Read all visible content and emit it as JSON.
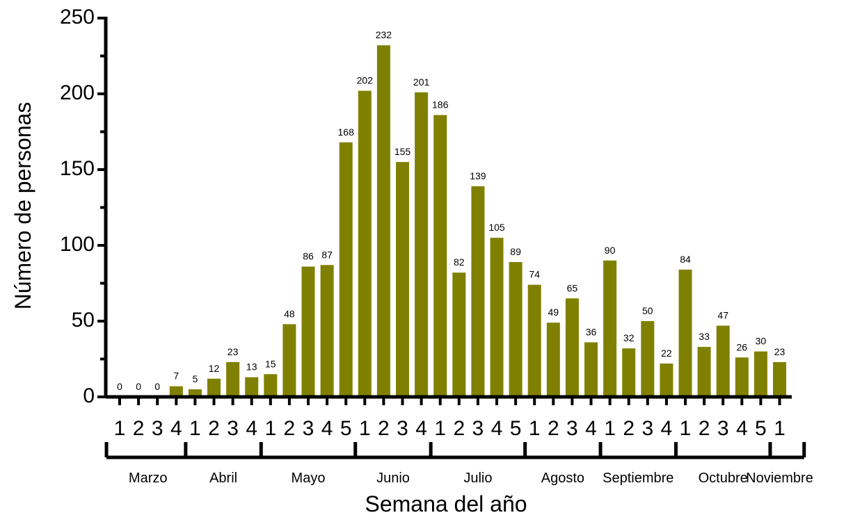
{
  "chart_data": {
    "type": "bar",
    "xlabel": "Semana del año",
    "ylabel": "Número de personas",
    "ylim": [
      0,
      250
    ],
    "yticks": [
      0,
      50,
      100,
      150,
      200,
      250
    ],
    "grid": false,
    "bar_color": "#808000",
    "categories": [
      "1",
      "2",
      "3",
      "4",
      "1",
      "2",
      "3",
      "4",
      "1",
      "2",
      "3",
      "4",
      "5",
      "1",
      "2",
      "3",
      "4",
      "1",
      "2",
      "3",
      "4",
      "5",
      "1",
      "2",
      "3",
      "4",
      "1",
      "2",
      "3",
      "4",
      "1",
      "2",
      "3",
      "4",
      "5",
      "1"
    ],
    "values": [
      0,
      0,
      0,
      7,
      5,
      12,
      23,
      13,
      15,
      48,
      86,
      87,
      168,
      202,
      232,
      155,
      201,
      186,
      82,
      139,
      105,
      89,
      74,
      49,
      65,
      36,
      90,
      32,
      50,
      22,
      84,
      33,
      47,
      26,
      30,
      23
    ],
    "months": [
      {
        "name": "Marzo",
        "weeks": 4
      },
      {
        "name": "Abril",
        "weeks": 4
      },
      {
        "name": "Mayo",
        "weeks": 5
      },
      {
        "name": "Junio",
        "weeks": 4
      },
      {
        "name": "Julio",
        "weeks": 5
      },
      {
        "name": "Agosto",
        "weeks": 4
      },
      {
        "name": "Septiembre",
        "weeks": 4
      },
      {
        "name": "Octubre",
        "weeks": 5
      },
      {
        "name": "Noviembre",
        "weeks": 1
      }
    ]
  }
}
